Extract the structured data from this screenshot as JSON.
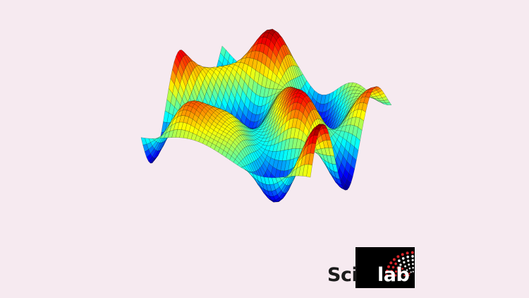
{
  "logo": {
    "text_dark": "Sci",
    "text_light": "lab",
    "box_color": "#000000",
    "dot_color_red": "#d9262b",
    "dot_color_white": "#f2f2f2"
  },
  "plot": {
    "type": "3d-surface",
    "colormap": "jet",
    "mesh_color": "#000000",
    "background": "#f6eaf0"
  }
}
